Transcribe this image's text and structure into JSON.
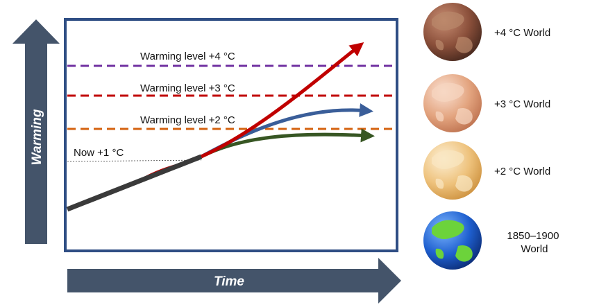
{
  "axes": {
    "y_label": "Warming",
    "x_label": "Time",
    "arrow_color": "#44546a"
  },
  "reference": {
    "label": "Now +1 °C"
  },
  "levels": [
    {
      "label": "Warming level +4 °C",
      "color": "#7030a0"
    },
    {
      "label": "Warming level +3 °C",
      "color": "#c00000"
    },
    {
      "label": "Warming level +2 °C",
      "color": "#d4620f"
    }
  ],
  "globes": [
    {
      "label": "+4 °C World",
      "tint": "#8a4f3a",
      "land": "#b9876a"
    },
    {
      "label": "+3 °C World",
      "tint": "#e3a47f",
      "land": "#f6d4bf"
    },
    {
      "label": "+2 °C World",
      "tint": "#eec27c",
      "land": "#f9e6c1"
    },
    {
      "label": "1850–1900\nWorld",
      "tint": "#1e5fcf",
      "land": "#6cd33b"
    }
  ],
  "trajectories": [
    {
      "name": "+4",
      "color": "#c00000"
    },
    {
      "name": "+3",
      "color": "#3a5e99"
    },
    {
      "name": "+2",
      "color": "#375623"
    },
    {
      "name": "historical",
      "color": "#3a3a3a"
    }
  ],
  "frame_color": "#2f4e84"
}
